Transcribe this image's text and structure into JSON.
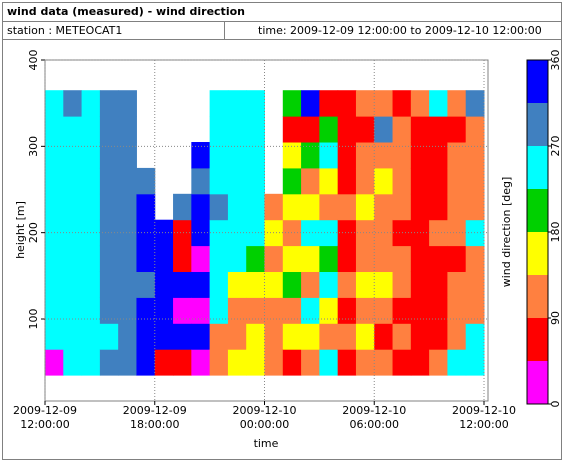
{
  "chart_data": {
    "type": "heatmap",
    "title": "wind data (measured) - wind direction",
    "station": "station : METEOCAT1",
    "period": "time: 2009-12-09 12:00:00 to 2009-12-10 12:00:00",
    "x_label": "time",
    "y_label": "height [m]",
    "colorbar_label": "wind direction [deg]",
    "x": [
      "2009-12-09 12:00:00",
      "2009-12-09 13:00:00",
      "2009-12-09 14:00:00",
      "2009-12-09 15:00:00",
      "2009-12-09 16:00:00",
      "2009-12-09 17:00:00",
      "2009-12-09 18:00:00",
      "2009-12-09 19:00:00",
      "2009-12-09 20:00:00",
      "2009-12-09 21:00:00",
      "2009-12-09 22:00:00",
      "2009-12-09 23:00:00",
      "2009-12-10 00:00:00",
      "2009-12-10 01:00:00",
      "2009-12-10 02:00:00",
      "2009-12-10 03:00:00",
      "2009-12-10 04:00:00",
      "2009-12-10 05:00:00",
      "2009-12-10 06:00:00",
      "2009-12-10 07:00:00",
      "2009-12-10 08:00:00",
      "2009-12-10 09:00:00",
      "2009-12-10 10:00:00",
      "2009-12-10 11:00:00"
    ],
    "y": [
      50,
      80,
      110,
      140,
      170,
      200,
      230,
      260,
      290,
      320,
      350
    ],
    "z": [
      [
        20,
        250,
        250,
        250,
        250,
        250,
        250,
        250,
        250,
        250,
        250
      ],
      [
        250,
        250,
        250,
        250,
        250,
        250,
        250,
        250,
        250,
        250,
        300
      ],
      [
        250,
        250,
        250,
        250,
        250,
        250,
        250,
        250,
        250,
        250,
        250
      ],
      [
        290,
        250,
        290,
        290,
        290,
        290,
        290,
        290,
        290,
        290,
        290
      ],
      [
        290,
        290,
        290,
        290,
        290,
        290,
        290,
        290,
        290,
        290,
        290
      ],
      [
        330,
        330,
        330,
        300,
        330,
        330,
        330,
        300,
        null,
        null,
        null
      ],
      [
        80,
        330,
        330,
        330,
        330,
        330,
        null,
        null,
        null,
        null,
        null
      ],
      [
        60,
        330,
        20,
        330,
        80,
        60,
        300,
        null,
        null,
        null,
        null
      ],
      [
        20,
        330,
        20,
        330,
        20,
        330,
        330,
        300,
        330,
        null,
        null
      ],
      [
        110,
        120,
        250,
        250,
        250,
        250,
        300,
        250,
        250,
        250,
        250
      ],
      [
        160,
        110,
        110,
        160,
        250,
        250,
        250,
        250,
        250,
        250,
        250
      ],
      [
        160,
        160,
        120,
        160,
        200,
        250,
        250,
        250,
        250,
        250,
        250
      ],
      [
        120,
        120,
        120,
        160,
        120,
        160,
        120,
        null,
        null,
        null,
        null
      ],
      [
        60,
        160,
        120,
        200,
        160,
        120,
        160,
        200,
        160,
        60,
        200
      ],
      [
        120,
        160,
        250,
        120,
        160,
        250,
        160,
        120,
        200,
        80,
        340
      ],
      [
        250,
        120,
        160,
        250,
        200,
        250,
        120,
        160,
        250,
        200,
        60
      ],
      [
        60,
        120,
        60,
        120,
        80,
        60,
        120,
        60,
        80,
        60,
        60
      ],
      [
        120,
        160,
        120,
        160,
        120,
        120,
        160,
        120,
        120,
        70,
        120
      ],
      [
        120,
        70,
        120,
        160,
        120,
        120,
        120,
        160,
        120,
        290,
        120
      ],
      [
        70,
        120,
        70,
        120,
        120,
        70,
        120,
        120,
        120,
        120,
        60
      ],
      [
        60,
        60,
        70,
        60,
        60,
        60,
        70,
        60,
        70,
        60,
        120
      ],
      [
        120,
        70,
        60,
        70,
        60,
        120,
        70,
        60,
        60,
        70,
        250
      ],
      [
        250,
        120,
        120,
        120,
        70,
        120,
        120,
        120,
        120,
        60,
        120
      ],
      [
        250,
        250,
        120,
        120,
        120,
        250,
        120,
        120,
        120,
        120,
        290
      ]
    ],
    "xlim": [
      "2009-12-09 12:00:00",
      "2009-12-10 12:00:00"
    ],
    "xticks": [
      "2009-12-09 12:00:00",
      "2009-12-09 18:00:00",
      "2009-12-10 00:00:00",
      "2009-12-10 06:00:00",
      "2009-12-10 12:00:00"
    ],
    "ylim": [
      5,
      400
    ],
    "yticks": [
      100,
      200,
      300,
      400
    ],
    "zlim": [
      0,
      360
    ],
    "zticks": [
      0,
      90,
      180,
      270,
      360
    ],
    "colors": [
      "#ff00ff",
      "#ff0000",
      "#ff8040",
      "#ffff00",
      "#00d000",
      "#00ffff",
      "#4080c0",
      "#0000ff"
    ],
    "grid": true
  }
}
